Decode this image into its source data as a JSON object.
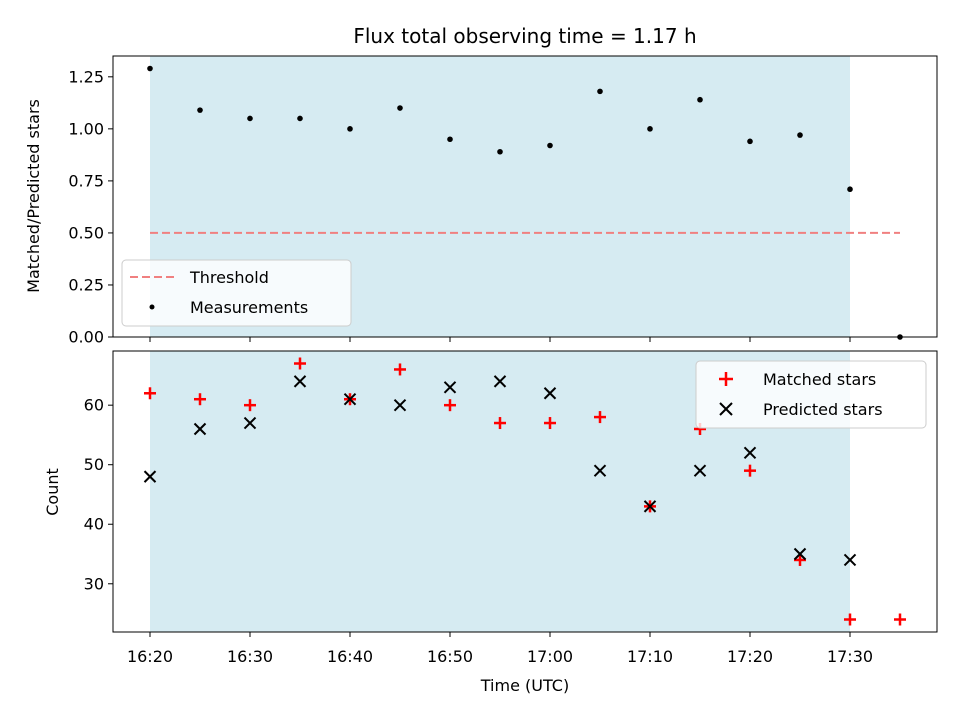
{
  "chart_data": [
    {
      "type": "scatter",
      "title": "Flux total observing time = 1.17 h",
      "xlabel": "",
      "ylabel": "Matched/Predicted stars",
      "ylim": [
        0,
        1.35
      ],
      "yticks": [
        "0.00",
        "0.25",
        "0.50",
        "0.75",
        "1.00",
        "1.25"
      ],
      "x": [
        "16:20",
        "16:25",
        "16:30",
        "16:35",
        "16:40",
        "16:45",
        "16:50",
        "16:55",
        "17:00",
        "17:05",
        "17:10",
        "17:15",
        "17:20",
        "17:25",
        "17:30",
        "17:35"
      ],
      "series": [
        {
          "name": "Measurements",
          "color": "#000000",
          "marker": "dot",
          "values": [
            1.29,
            1.09,
            1.05,
            1.05,
            1.0,
            1.1,
            0.95,
            0.89,
            0.92,
            1.18,
            1.0,
            1.14,
            0.94,
            0.97,
            0.71,
            0.0
          ]
        },
        {
          "name": "Threshold",
          "color": "#f08080",
          "style": "dashed",
          "values": [
            0.5,
            0.5
          ]
        }
      ],
      "threshold": {
        "value": 0.5,
        "x_range": [
          "16:20",
          "17:35"
        ]
      },
      "shaded_span": {
        "from": "16:20",
        "to": "17:30",
        "color": "#add8e6"
      },
      "legend_position": "lower-left"
    },
    {
      "type": "scatter",
      "xlabel": "Time (UTC)",
      "ylabel": "Count",
      "xticks": [
        "16:20",
        "16:30",
        "16:40",
        "16:50",
        "17:00",
        "17:10",
        "17:20",
        "17:30"
      ],
      "yticks": [
        "30",
        "40",
        "50",
        "60"
      ],
      "ylim": [
        21.9,
        69.1
      ],
      "x": [
        "16:20",
        "16:25",
        "16:30",
        "16:35",
        "16:40",
        "16:45",
        "16:50",
        "16:55",
        "17:00",
        "17:05",
        "17:10",
        "17:15",
        "17:20",
        "17:25",
        "17:30",
        "17:35"
      ],
      "series": [
        {
          "name": "Matched stars",
          "color": "#ff0000",
          "marker": "plus",
          "values": [
            62,
            61,
            60,
            67,
            61,
            66,
            60,
            57,
            57,
            58,
            43,
            56,
            49,
            34,
            24,
            24
          ]
        },
        {
          "name": "Predicted stars",
          "color": "#000000",
          "marker": "x",
          "x_count": 15,
          "values": [
            48,
            56,
            57,
            64,
            61,
            60,
            63,
            64,
            62,
            49,
            43,
            49,
            52,
            35,
            34
          ]
        }
      ],
      "shaded_span": {
        "from": "16:20",
        "to": "17:30",
        "color": "#add8e6"
      },
      "legend_position": "upper-right"
    }
  ]
}
